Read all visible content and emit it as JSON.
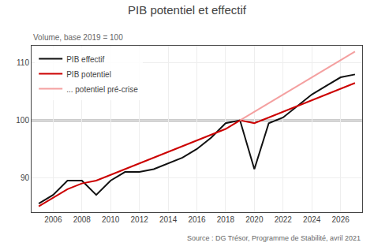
{
  "chart_data": {
    "type": "line",
    "title": "PIB potentiel et effectif",
    "subtitle": "Volume, base 2019 = 100",
    "source": "Source : DG Trésor, Programme de Stabilité, avril 2021",
    "xlim": [
      2004.5,
      2027.5
    ],
    "xticks": [
      2006,
      2008,
      2010,
      2012,
      2014,
      2016,
      2018,
      2020,
      2022,
      2024,
      2026
    ],
    "ylim": [
      84,
      113
    ],
    "yticks": [
      90,
      100,
      110
    ],
    "grid": true,
    "legend": "upper left",
    "hline": {
      "value": 100,
      "color": "#333333"
    },
    "series": [
      {
        "name": "PIB effectif",
        "color": "#111111",
        "x": [
          2005,
          2006,
          2007,
          2008,
          2009,
          2010,
          2011,
          2012,
          2013,
          2014,
          2015,
          2016,
          2017,
          2018,
          2019,
          2020,
          2021,
          2022,
          2023,
          2024,
          2025,
          2026,
          2027
        ],
        "values": [
          85.5,
          87.0,
          89.5,
          89.5,
          87.0,
          89.5,
          91.0,
          91.0,
          91.5,
          92.5,
          93.5,
          95.0,
          97.0,
          99.5,
          100.0,
          91.5,
          99.5,
          100.5,
          102.5,
          104.5,
          106.0,
          107.5,
          108.0
        ]
      },
      {
        "name": "PIB potentiel",
        "color": "#cc0000",
        "x": [
          2005,
          2006,
          2007,
          2008,
          2009,
          2010,
          2011,
          2012,
          2013,
          2014,
          2015,
          2016,
          2017,
          2018,
          2019,
          2020,
          2021,
          2022,
          2023,
          2024,
          2025,
          2026,
          2027
        ],
        "values": [
          85.0,
          86.5,
          88.0,
          89.0,
          89.5,
          90.5,
          91.5,
          92.5,
          93.5,
          94.5,
          95.5,
          96.5,
          97.5,
          98.5,
          100.0,
          99.5,
          100.5,
          101.5,
          102.5,
          103.5,
          104.5,
          105.5,
          106.5
        ]
      },
      {
        "name": "... potentiel pré-crise",
        "color": "#f4a0a0",
        "x": [
          2019,
          2020,
          2021,
          2022,
          2023,
          2024,
          2025,
          2026,
          2027
        ],
        "values": [
          100.0,
          101.5,
          103.0,
          104.5,
          106.0,
          107.5,
          109.0,
          110.5,
          112.0
        ]
      }
    ]
  }
}
